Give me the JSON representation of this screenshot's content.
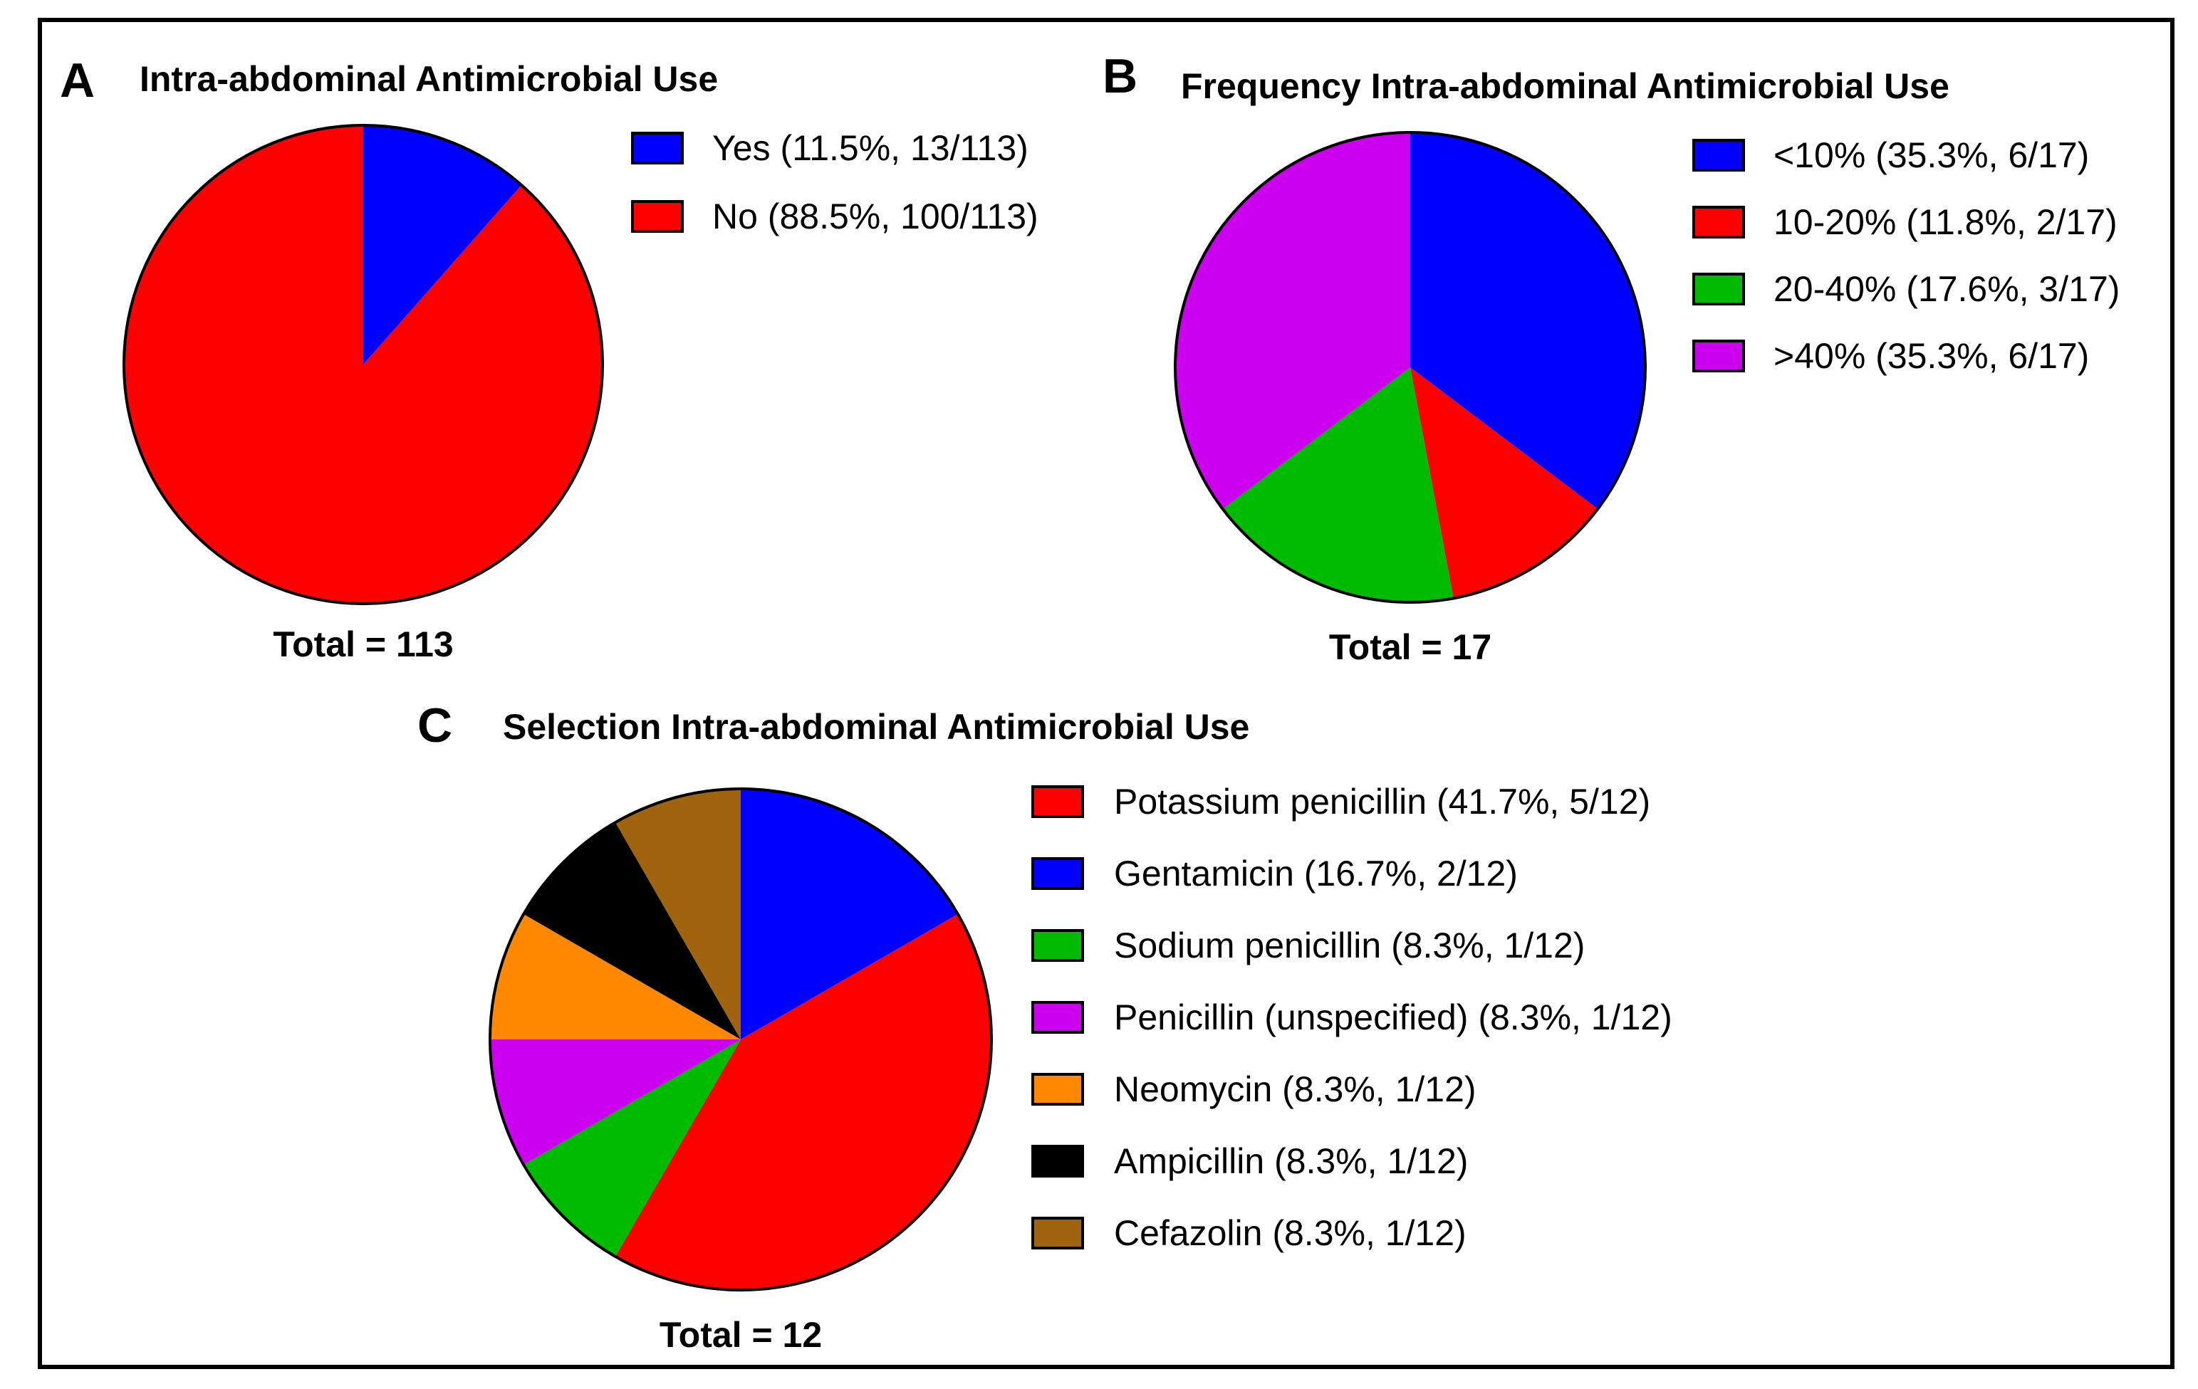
{
  "chart_data": [
    {
      "type": "pie",
      "panel": "A",
      "title": "Intra-abdominal Antimicrobial Use",
      "total_label": "Total = 113",
      "slices": [
        {
          "label": "Yes (11.5%, 13/113)",
          "value": 13,
          "color": "#0000ff"
        },
        {
          "label": "No (88.5%, 100/113)",
          "value": 100,
          "color": "#ff0000"
        }
      ]
    },
    {
      "type": "pie",
      "panel": "B",
      "title": "Frequency Intra-abdominal Antimicrobial Use",
      "total_label": "Total = 17",
      "slices": [
        {
          "label": "<10% (35.3%, 6/17)",
          "value": 6,
          "color": "#0000ff"
        },
        {
          "label": "10-20% (11.8%, 2/17)",
          "value": 2,
          "color": "#ff0000"
        },
        {
          "label": "20-40% (17.6%, 3/17)",
          "value": 3,
          "color": "#00bb00"
        },
        {
          "label": ">40% (35.3%, 6/17)",
          "value": 6,
          "color": "#cc00ee"
        }
      ]
    },
    {
      "type": "pie",
      "panel": "C",
      "title": "Selection Intra-abdominal Antimicrobial Use",
      "total_label": "Total = 12",
      "draw_order": [
        1,
        0,
        2,
        3,
        4,
        5,
        6
      ],
      "slices": [
        {
          "label": "Potassium penicillin (41.7%, 5/12)",
          "value": 5,
          "color": "#ff0000"
        },
        {
          "label": "Gentamicin (16.7%, 2/12)",
          "value": 2,
          "color": "#0000ff"
        },
        {
          "label": "Sodium penicillin (8.3%, 1/12)",
          "value": 1,
          "color": "#00bb00"
        },
        {
          "label": "Penicillin (unspecified) (8.3%, 1/12)",
          "value": 1,
          "color": "#cc00ee"
        },
        {
          "label": "Neomycin (8.3%, 1/12)",
          "value": 1,
          "color": "#ff8800"
        },
        {
          "label": "Ampicillin (8.3%, 1/12)",
          "value": 1,
          "color": "#000000"
        },
        {
          "label": "Cefazolin (8.3%, 1/12)",
          "value": 1,
          "color": "#a0640f"
        }
      ]
    }
  ]
}
